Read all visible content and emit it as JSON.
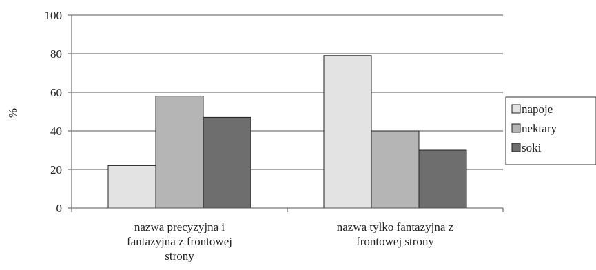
{
  "chart_data": {
    "type": "bar",
    "title": "",
    "xlabel": "",
    "ylabel": "%",
    "ylim": [
      0,
      100
    ],
    "yticks": [
      0,
      20,
      40,
      60,
      80,
      100
    ],
    "grid": true,
    "legend_position": "right",
    "categories": [
      [
        "nazwa precyzyjna i",
        "fantazyjna z frontowej",
        "strony"
      ],
      [
        "nazwa tylko fantazyjna z",
        "frontowej strony"
      ]
    ],
    "series": [
      {
        "name": "napoje",
        "color": "#e3e3e3",
        "values": [
          22,
          79
        ]
      },
      {
        "name": "nektary",
        "color": "#b5b5b5",
        "values": [
          58,
          40
        ]
      },
      {
        "name": "soki",
        "color": "#6e6e6e",
        "values": [
          47,
          30
        ]
      }
    ]
  }
}
